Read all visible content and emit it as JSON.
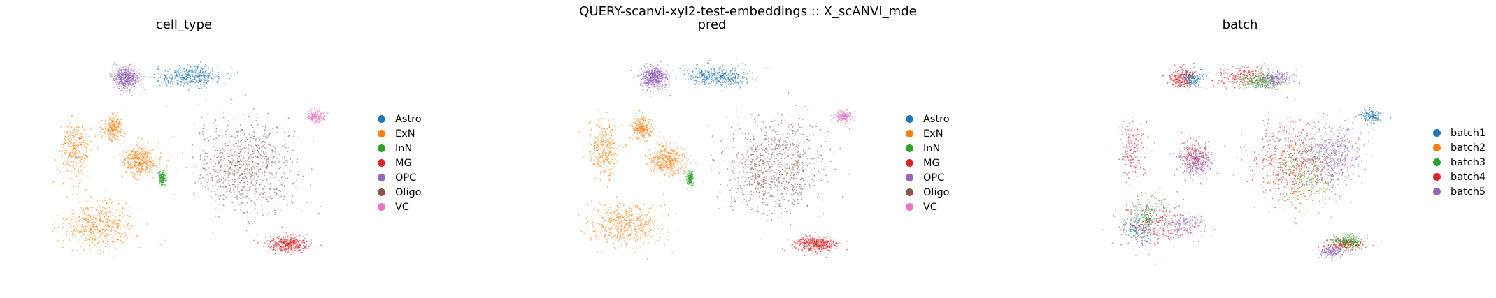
{
  "figure": {
    "suptitle": "QUERY-scanvi-xyl2-test-embeddings :: X_scANVI_mde"
  },
  "chart_data": [
    {
      "type": "scatter",
      "title": "cell_type",
      "legend_placement": "right",
      "grid": false,
      "axes_visible": false,
      "legend": [
        {
          "label": "Astro",
          "color": "#1f77b4"
        },
        {
          "label": "ExN",
          "color": "#ff7f0e"
        },
        {
          "label": "InN",
          "color": "#2ca02c"
        },
        {
          "label": "MG",
          "color": "#d62728"
        },
        {
          "label": "OPC",
          "color": "#9467bd"
        },
        {
          "label": "Oligo",
          "color": "#8c564b"
        },
        {
          "label": "VC",
          "color": "#e377c2"
        }
      ],
      "clusters": [
        {
          "category": "Oligo",
          "center": [
            0.42,
            -0.05
          ],
          "spread": [
            0.3,
            0.35
          ],
          "density": 1.0
        },
        {
          "category": "ExN",
          "center": [
            -0.55,
            -0.55
          ],
          "spread": [
            0.22,
            0.18
          ],
          "density": 0.55
        },
        {
          "category": "ExN",
          "center": [
            -0.7,
            0.1
          ],
          "spread": [
            0.09,
            0.22
          ],
          "density": 0.35
        },
        {
          "category": "ExN",
          "center": [
            -0.28,
            0.0
          ],
          "spread": [
            0.1,
            0.12
          ],
          "density": 0.45
        },
        {
          "category": "ExN",
          "center": [
            -0.45,
            0.28
          ],
          "spread": [
            0.06,
            0.1
          ],
          "density": 0.25
        },
        {
          "category": "Astro",
          "center": [
            0.05,
            0.72
          ],
          "spread": [
            0.2,
            0.08
          ],
          "density": 0.45
        },
        {
          "category": "OPC",
          "center": [
            -0.37,
            0.71
          ],
          "spread": [
            0.08,
            0.08
          ],
          "density": 0.55
        },
        {
          "category": "MG",
          "center": [
            0.7,
            -0.72
          ],
          "spread": [
            0.12,
            0.06
          ],
          "density": 0.45
        },
        {
          "category": "VC",
          "center": [
            0.88,
            0.38
          ],
          "spread": [
            0.06,
            0.05
          ],
          "density": 0.2
        },
        {
          "category": "InN",
          "center": [
            -0.13,
            -0.15
          ],
          "spread": [
            0.02,
            0.05
          ],
          "density": 0.15
        }
      ]
    },
    {
      "type": "scatter",
      "title": "pred",
      "legend_placement": "right",
      "grid": false,
      "axes_visible": false,
      "legend": [
        {
          "label": "Astro",
          "color": "#1f77b4"
        },
        {
          "label": "ExN",
          "color": "#ff7f0e"
        },
        {
          "label": "InN",
          "color": "#2ca02c"
        },
        {
          "label": "MG",
          "color": "#d62728"
        },
        {
          "label": "OPC",
          "color": "#9467bd"
        },
        {
          "label": "Oligo",
          "color": "#8c564b"
        },
        {
          "label": "VC",
          "color": "#e377c2"
        }
      ],
      "clusters": [
        {
          "category": "Oligo",
          "center": [
            0.42,
            -0.05
          ],
          "spread": [
            0.3,
            0.35
          ],
          "density": 1.0
        },
        {
          "category": "ExN",
          "center": [
            -0.55,
            -0.55
          ],
          "spread": [
            0.22,
            0.18
          ],
          "density": 0.55
        },
        {
          "category": "ExN",
          "center": [
            -0.7,
            0.1
          ],
          "spread": [
            0.09,
            0.22
          ],
          "density": 0.35
        },
        {
          "category": "ExN",
          "center": [
            -0.28,
            0.0
          ],
          "spread": [
            0.1,
            0.12
          ],
          "density": 0.45
        },
        {
          "category": "ExN",
          "center": [
            -0.45,
            0.28
          ],
          "spread": [
            0.06,
            0.1
          ],
          "density": 0.25
        },
        {
          "category": "Astro",
          "center": [
            0.05,
            0.72
          ],
          "spread": [
            0.2,
            0.08
          ],
          "density": 0.45
        },
        {
          "category": "OPC",
          "center": [
            -0.37,
            0.71
          ],
          "spread": [
            0.08,
            0.08
          ],
          "density": 0.55
        },
        {
          "category": "MG",
          "center": [
            0.7,
            -0.72
          ],
          "spread": [
            0.12,
            0.06
          ],
          "density": 0.45
        },
        {
          "category": "VC",
          "center": [
            0.88,
            0.38
          ],
          "spread": [
            0.06,
            0.05
          ],
          "density": 0.2
        },
        {
          "category": "InN",
          "center": [
            -0.13,
            -0.15
          ],
          "spread": [
            0.02,
            0.05
          ],
          "density": 0.15
        }
      ]
    },
    {
      "type": "scatter",
      "title": "batch",
      "legend_placement": "right",
      "grid": false,
      "axes_visible": false,
      "legend": [
        {
          "label": "batch1",
          "color": "#1f77b4"
        },
        {
          "label": "batch2",
          "color": "#ff7f0e"
        },
        {
          "label": "batch3",
          "color": "#2ca02c"
        },
        {
          "label": "batch4",
          "color": "#d62728"
        },
        {
          "label": "batch5",
          "color": "#9467bd"
        }
      ],
      "clusters": [
        {
          "category": "batch4",
          "center": [
            0.35,
            0.0
          ],
          "spread": [
            0.22,
            0.3
          ],
          "density": 0.55
        },
        {
          "category": "batch5",
          "center": [
            0.62,
            0.05
          ],
          "spread": [
            0.18,
            0.25
          ],
          "density": 0.55
        },
        {
          "category": "batch3",
          "center": [
            0.45,
            -0.1
          ],
          "spread": [
            0.2,
            0.25
          ],
          "density": 0.25
        },
        {
          "category": "batch2",
          "center": [
            0.4,
            -0.2
          ],
          "spread": [
            0.25,
            0.25
          ],
          "density": 0.15
        },
        {
          "category": "batch4",
          "center": [
            -0.55,
            -0.55
          ],
          "spread": [
            0.22,
            0.18
          ],
          "density": 0.3
        },
        {
          "category": "batch3",
          "center": [
            -0.6,
            -0.45
          ],
          "spread": [
            0.12,
            0.12
          ],
          "density": 0.18
        },
        {
          "category": "batch1",
          "center": [
            -0.65,
            -0.6
          ],
          "spread": [
            0.1,
            0.1
          ],
          "density": 0.15
        },
        {
          "category": "batch5",
          "center": [
            -0.35,
            -0.55
          ],
          "spread": [
            0.12,
            0.1
          ],
          "density": 0.15
        },
        {
          "category": "batch4",
          "center": [
            -0.7,
            0.1
          ],
          "spread": [
            0.09,
            0.22
          ],
          "density": 0.18
        },
        {
          "category": "batch5",
          "center": [
            -0.28,
            0.0
          ],
          "spread": [
            0.1,
            0.12
          ],
          "density": 0.35
        },
        {
          "category": "batch4",
          "center": [
            -0.28,
            0.05
          ],
          "spread": [
            0.1,
            0.12
          ],
          "density": 0.15
        },
        {
          "category": "batch4",
          "center": [
            0.05,
            0.72
          ],
          "spread": [
            0.2,
            0.08
          ],
          "density": 0.25
        },
        {
          "category": "batch3",
          "center": [
            0.15,
            0.68
          ],
          "spread": [
            0.12,
            0.06
          ],
          "density": 0.25
        },
        {
          "category": "batch5",
          "center": [
            0.25,
            0.7
          ],
          "spread": [
            0.1,
            0.06
          ],
          "density": 0.2
        },
        {
          "category": "batch4",
          "center": [
            -0.37,
            0.71
          ],
          "spread": [
            0.08,
            0.08
          ],
          "density": 0.25
        },
        {
          "category": "batch1",
          "center": [
            -0.3,
            0.7
          ],
          "spread": [
            0.06,
            0.06
          ],
          "density": 0.15
        },
        {
          "category": "batch3",
          "center": [
            0.72,
            -0.7
          ],
          "spread": [
            0.1,
            0.05
          ],
          "density": 0.25
        },
        {
          "category": "batch5",
          "center": [
            0.62,
            -0.78
          ],
          "spread": [
            0.08,
            0.05
          ],
          "density": 0.2
        },
        {
          "category": "batch4",
          "center": [
            0.7,
            -0.72
          ],
          "spread": [
            0.12,
            0.06
          ],
          "density": 0.15
        },
        {
          "category": "batch1",
          "center": [
            0.88,
            0.38
          ],
          "spread": [
            0.06,
            0.05
          ],
          "density": 0.15
        }
      ]
    }
  ]
}
